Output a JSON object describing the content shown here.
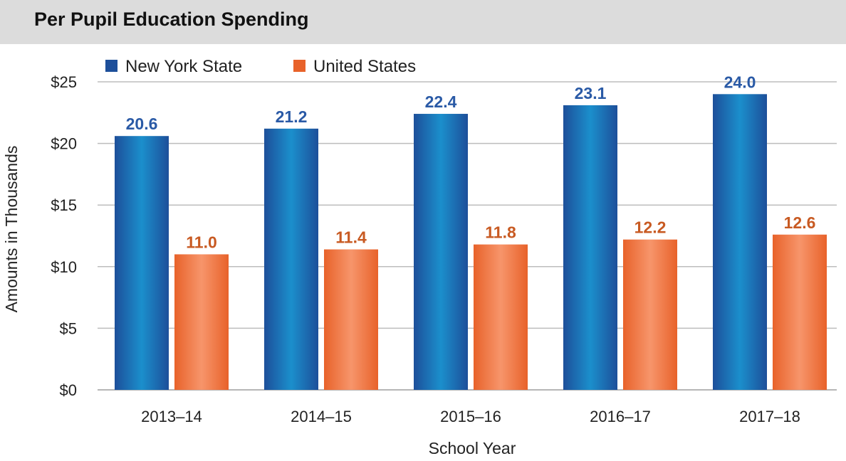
{
  "header": {
    "title": "Per Pupil Education Spending"
  },
  "colors": {
    "header_bg": "#dcdcdc",
    "nys_dark": "#1d4f9a",
    "nys_light": "#1b8fcc",
    "us_dark": "#e8622a",
    "us_light": "#f7956b",
    "nys_label": "#2a5aa6",
    "us_label": "#c85a22",
    "grid": "#bdbdbd"
  },
  "chart_data": {
    "type": "bar",
    "title": "Per Pupil Education Spending",
    "xlabel": "School Year",
    "ylabel": "Amounts in Thousands",
    "categories": [
      "2013–14",
      "2014–15",
      "2015–16",
      "2016–17",
      "2017–18"
    ],
    "series": [
      {
        "name": "New York State",
        "values": [
          20.6,
          21.2,
          22.4,
          23.1,
          24.0
        ],
        "labels": [
          "20.6",
          "21.2",
          "22.4",
          "23.1",
          "24.0"
        ]
      },
      {
        "name": "United States",
        "values": [
          11.0,
          11.4,
          11.8,
          12.2,
          12.6
        ],
        "labels": [
          "11.0",
          "11.4",
          "11.8",
          "12.2",
          "12.6"
        ]
      }
    ],
    "yticks": [
      0,
      5,
      10,
      15,
      20,
      25
    ],
    "ytick_labels": [
      "$0",
      "$5",
      "$10",
      "$15",
      "$20",
      "$25"
    ],
    "ylim": [
      0,
      25
    ],
    "grid": true,
    "legend": "top-left"
  }
}
